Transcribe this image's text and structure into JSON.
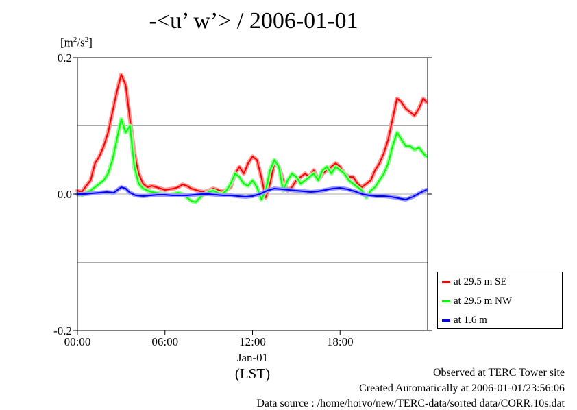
{
  "title": "-<u’ w’> / 2006-01-01",
  "unit_label": {
    "base": "[m",
    "exp": "2",
    "mid": "/s",
    "exp2": "2",
    "close": "]"
  },
  "footer": {
    "line1": "Observed at TERC Tower site",
    "line2": "Created Automatically at 2006-01-01/23:56:06",
    "line3": "Data source : /home/hoivo/new/TERC-data/sorted  data/CORR.10s.dat"
  },
  "chart_data": {
    "type": "line",
    "title": "-<u’ w’> / 2006-01-01",
    "xlabel": "(LST)",
    "ylabel": "[m2/s2]",
    "xlim": [
      0,
      24
    ],
    "ylim": [
      -0.2,
      0.2
    ],
    "grid": {
      "horizontal": true,
      "vertical": false
    },
    "legend_placement": "bottom-right outside",
    "y_ticks": [
      {
        "value": 0.2,
        "label": "0.2"
      },
      {
        "value": 0.0,
        "label": "0.0"
      },
      {
        "value": -0.2,
        "label": "-0.2"
      }
    ],
    "y_gridlines": [
      0.1,
      0.0,
      -0.1
    ],
    "x_ticks": [
      {
        "value": 0,
        "label": "00:00"
      },
      {
        "value": 6,
        "label": "06:00"
      },
      {
        "value": 12,
        "label": "12:00"
      },
      {
        "value": 18,
        "label": "18:00"
      }
    ],
    "x_date_label": "Jan-01",
    "x_date_at": 12,
    "series": [
      {
        "name": "at 29.5 m SE",
        "color": "#ff0000",
        "halo": "#ff9a9a",
        "x": [
          0,
          0.3,
          0.6,
          0.9,
          1.2,
          1.5,
          1.8,
          2.1,
          2.4,
          2.7,
          3.0,
          3.3,
          3.6,
          3.9,
          4.2,
          4.5,
          4.8,
          5.1,
          5.4,
          5.7,
          6.0,
          6.3,
          6.6,
          6.9,
          7.2,
          7.5,
          7.8,
          8.1,
          8.4,
          8.7,
          9.0,
          9.3,
          9.6,
          9.9,
          10.2,
          10.5,
          10.8,
          11.1,
          11.4,
          11.7,
          12.0,
          12.3,
          12.6,
          12.9,
          13.2,
          13.5,
          13.8,
          14.1,
          14.4,
          14.7,
          15.0,
          15.3,
          15.6,
          15.9,
          16.2,
          16.5,
          16.8,
          17.1,
          17.4,
          17.7,
          18.0,
          18.3,
          18.6,
          18.9,
          19.2,
          19.5,
          19.8,
          20.1,
          20.4,
          20.7,
          21.0,
          21.3,
          21.6,
          21.9,
          22.2,
          22.5,
          22.8,
          23.1,
          23.4,
          23.7,
          23.9
        ],
        "y": [
          0.005,
          0.003,
          0.012,
          0.02,
          0.045,
          0.055,
          0.07,
          0.09,
          0.12,
          0.15,
          0.175,
          0.16,
          0.11,
          0.06,
          0.03,
          0.015,
          0.01,
          0.012,
          0.01,
          0.008,
          0.006,
          0.007,
          0.008,
          0.01,
          0.014,
          0.012,
          0.008,
          0.006,
          0.004,
          0.003,
          0.005,
          0.008,
          0.006,
          0.004,
          0.006,
          0.01,
          0.03,
          0.04,
          0.03,
          0.045,
          0.055,
          0.05,
          0.025,
          -0.005,
          0.015,
          0.045,
          0.04,
          0.02,
          0.005,
          0.01,
          0.02,
          0.025,
          0.03,
          0.025,
          0.035,
          0.02,
          0.03,
          0.035,
          0.04,
          0.045,
          0.04,
          0.03,
          0.025,
          0.025,
          0.015,
          0.01,
          0.015,
          0.02,
          0.035,
          0.045,
          0.06,
          0.08,
          0.11,
          0.14,
          0.135,
          0.125,
          0.12,
          0.115,
          0.125,
          0.14,
          0.135
        ]
      },
      {
        "name": "at 29.5 m NW",
        "color": "#00ff00",
        "halo": "#9aff9a",
        "x": [
          0,
          0.3,
          0.6,
          0.9,
          1.2,
          1.5,
          1.8,
          2.1,
          2.4,
          2.7,
          3.0,
          3.3,
          3.6,
          3.9,
          4.2,
          4.5,
          4.8,
          5.1,
          5.4,
          5.7,
          6.0,
          6.3,
          6.6,
          6.9,
          7.2,
          7.5,
          7.8,
          8.1,
          8.4,
          8.7,
          9.0,
          9.3,
          9.6,
          9.9,
          10.2,
          10.5,
          10.8,
          11.1,
          11.4,
          11.7,
          12.0,
          12.3,
          12.6,
          12.9,
          13.2,
          13.5,
          13.8,
          14.1,
          14.4,
          14.7,
          15.0,
          15.3,
          15.6,
          15.9,
          16.2,
          16.5,
          16.8,
          17.1,
          17.4,
          17.7,
          18.0,
          18.3,
          18.6,
          18.9,
          19.2,
          19.5,
          19.8,
          20.1,
          20.4,
          20.7,
          21.0,
          21.3,
          21.6,
          21.9,
          22.2,
          22.5,
          22.8,
          23.1,
          23.4,
          23.7,
          23.9
        ],
        "y": [
          0.0,
          -0.002,
          0.002,
          0.005,
          0.01,
          0.015,
          0.02,
          0.03,
          0.05,
          0.08,
          0.11,
          0.09,
          0.1,
          0.04,
          0.015,
          0.008,
          0.005,
          0.003,
          0.002,
          0.001,
          0.0,
          -0.001,
          0.0,
          0.002,
          0.0,
          -0.005,
          -0.01,
          -0.012,
          -0.005,
          0.0,
          0.003,
          0.005,
          0.002,
          0.0,
          0.005,
          0.015,
          0.03,
          0.025,
          0.015,
          0.012,
          0.02,
          0.01,
          -0.008,
          0.005,
          0.035,
          0.05,
          0.04,
          0.005,
          0.02,
          0.03,
          0.025,
          0.015,
          0.02,
          0.025,
          0.03,
          0.02,
          0.035,
          0.04,
          0.03,
          0.04,
          0.035,
          0.03,
          0.02,
          0.015,
          0.01,
          0.005,
          -0.005,
          0.005,
          0.01,
          0.02,
          0.03,
          0.045,
          0.07,
          0.09,
          0.08,
          0.07,
          0.07,
          0.065,
          0.068,
          0.06,
          0.055
        ]
      },
      {
        "name": "at 1.6 m",
        "color": "#0000ff",
        "halo": "#9a9aff",
        "x": [
          0,
          0.5,
          1.0,
          1.5,
          2.0,
          2.5,
          3.0,
          3.3,
          3.6,
          4.0,
          4.5,
          5.0,
          5.5,
          6.0,
          6.5,
          7.0,
          7.5,
          8.0,
          8.5,
          9.0,
          9.5,
          10.0,
          10.5,
          11.0,
          11.5,
          12.0,
          12.5,
          13.0,
          13.5,
          14.0,
          14.5,
          15.0,
          15.5,
          16.0,
          16.5,
          17.0,
          17.5,
          18.0,
          18.5,
          19.0,
          19.5,
          20.0,
          20.5,
          21.0,
          21.5,
          22.0,
          22.5,
          23.0,
          23.5,
          23.9
        ],
        "y": [
          0.0,
          0.0,
          0.001,
          0.002,
          0.003,
          0.002,
          0.01,
          0.008,
          0.002,
          -0.002,
          -0.003,
          -0.002,
          -0.001,
          -0.001,
          -0.002,
          -0.002,
          -0.002,
          -0.001,
          0.0,
          0.0,
          -0.001,
          -0.002,
          -0.002,
          -0.003,
          -0.004,
          -0.003,
          0.0,
          0.005,
          0.008,
          0.007,
          0.006,
          0.005,
          0.004,
          0.003,
          0.004,
          0.006,
          0.008,
          0.009,
          0.007,
          0.004,
          0.0,
          -0.002,
          -0.003,
          -0.003,
          -0.004,
          -0.006,
          -0.008,
          -0.004,
          0.002,
          0.006
        ]
      }
    ]
  }
}
